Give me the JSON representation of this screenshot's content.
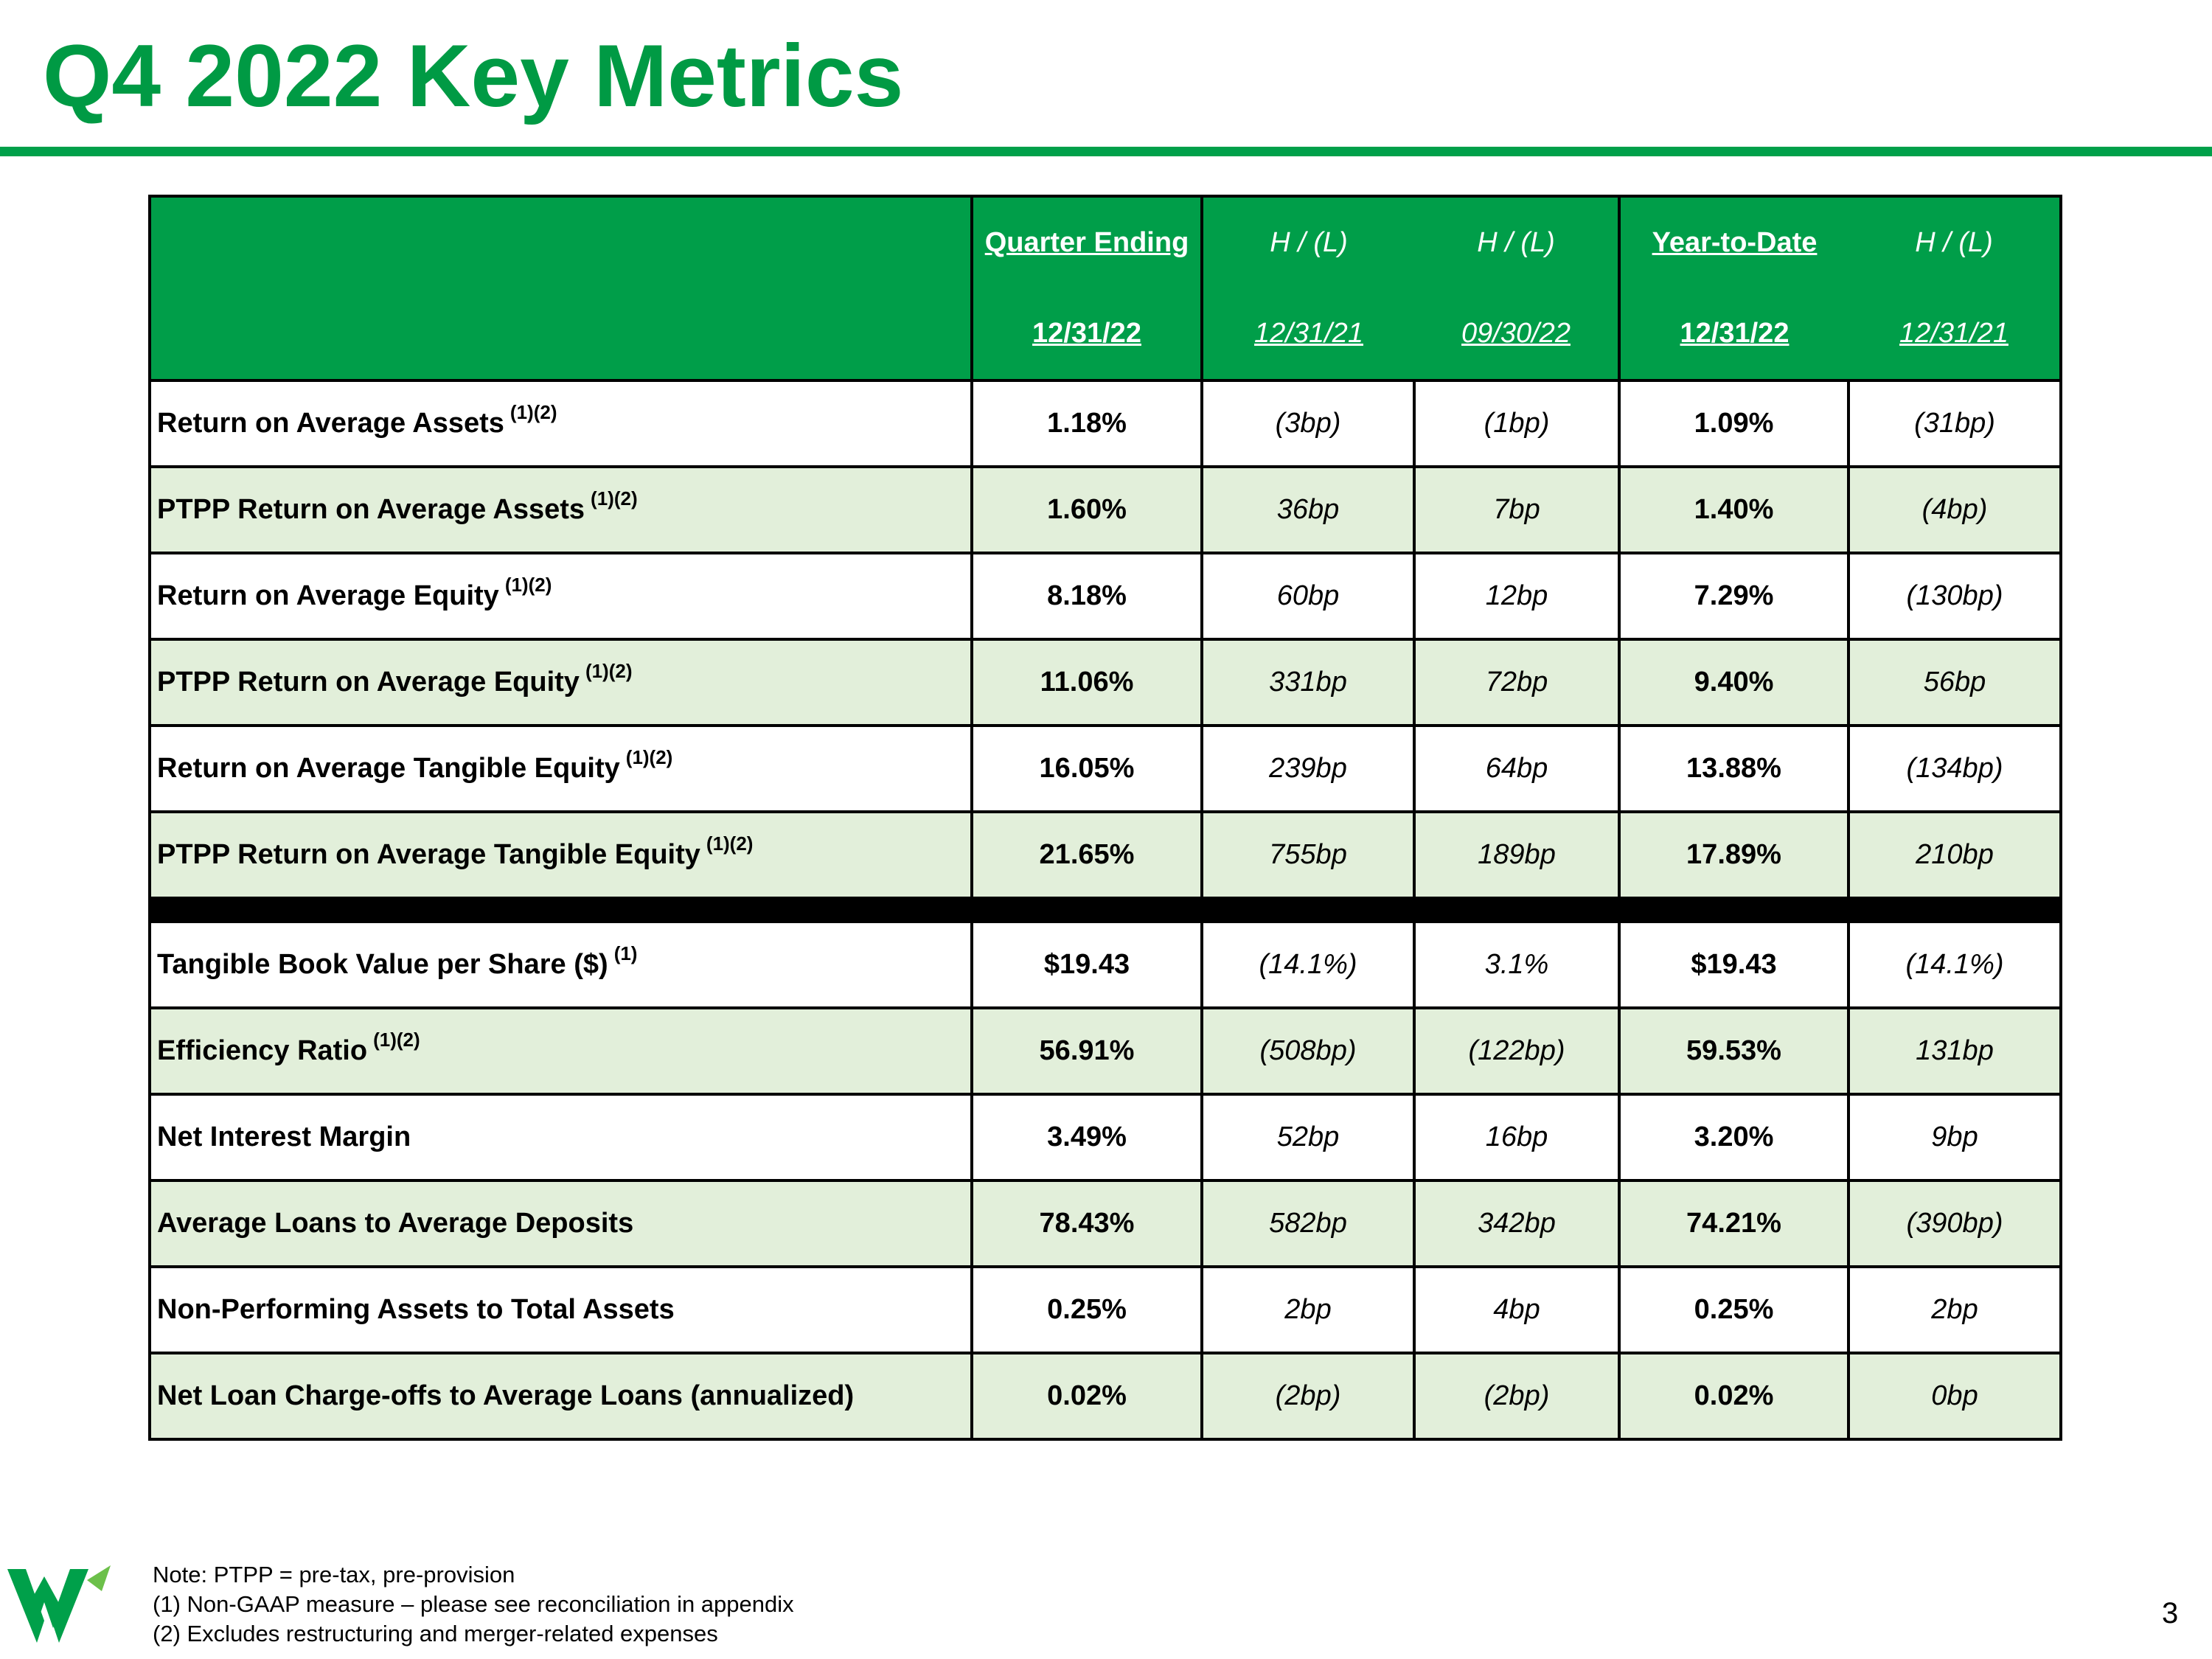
{
  "header": {
    "title": "Q4 2022 Key Metrics"
  },
  "table": {
    "columns": [
      {
        "top": "Quarter Ending",
        "bottom": "12/31/22"
      },
      {
        "top": "H / (L)",
        "bottom": "12/31/21"
      },
      {
        "top": "H / (L)",
        "bottom": "09/30/22"
      },
      {
        "top": "Year-to-Date",
        "bottom": "12/31/22"
      },
      {
        "top": "H / (L)",
        "bottom": "12/31/21"
      }
    ],
    "groups": [
      [
        {
          "label": "Return on Average Assets",
          "note": "(1)(2)",
          "values": [
            "1.18%",
            "(3bp)",
            "(1bp)",
            "1.09%",
            "(31bp)"
          ]
        },
        {
          "label": "PTPP Return on Average Assets",
          "note": "(1)(2)",
          "values": [
            "1.60%",
            "36bp",
            "7bp",
            "1.40%",
            "(4bp)"
          ]
        },
        {
          "label": "Return on Average Equity",
          "note": "(1)(2)",
          "values": [
            "8.18%",
            "60bp",
            "12bp",
            "7.29%",
            "(130bp)"
          ]
        },
        {
          "label": "PTPP Return on Average Equity",
          "note": "(1)(2)",
          "values": [
            "11.06%",
            "331bp",
            "72bp",
            "9.40%",
            "56bp"
          ]
        },
        {
          "label": "Return on Average Tangible Equity",
          "note": "(1)(2)",
          "values": [
            "16.05%",
            "239bp",
            "64bp",
            "13.88%",
            "(134bp)"
          ]
        },
        {
          "label": "PTPP Return on Average Tangible Equity",
          "note": "(1)(2)",
          "values": [
            "21.65%",
            "755bp",
            "189bp",
            "17.89%",
            "210bp"
          ]
        }
      ],
      [
        {
          "label": "Tangible Book Value per Share ($)",
          "note": "(1)",
          "values": [
            "$19.43",
            "(14.1%)",
            "3.1%",
            "$19.43",
            "(14.1%)"
          ]
        },
        {
          "label": "Efficiency Ratio",
          "note": "(1)(2)",
          "values": [
            "56.91%",
            "(508bp)",
            "(122bp)",
            "59.53%",
            "131bp"
          ]
        },
        {
          "label": "Net Interest Margin",
          "values": [
            "3.49%",
            "52bp",
            "16bp",
            "3.20%",
            "9bp"
          ]
        },
        {
          "label": "Average Loans to Average Deposits",
          "values": [
            "78.43%",
            "582bp",
            "342bp",
            "74.21%",
            "(390bp)"
          ]
        },
        {
          "label": "Non-Performing Assets to Total Assets",
          "values": [
            "0.25%",
            "2bp",
            "4bp",
            "0.25%",
            "2bp"
          ]
        },
        {
          "label": "Net Loan Charge-offs to Average Loans (annualized)",
          "values": [
            "0.02%",
            "(2bp)",
            "(2bp)",
            "0.02%",
            "0bp"
          ]
        }
      ]
    ]
  },
  "footer": {
    "notes": [
      "Note:  PTPP = pre-tax, pre-provision",
      "(1)    Non-GAAP measure – please see reconciliation in appendix",
      "(2)    Excludes restructuring and merger-related expenses"
    ],
    "page": "3"
  }
}
